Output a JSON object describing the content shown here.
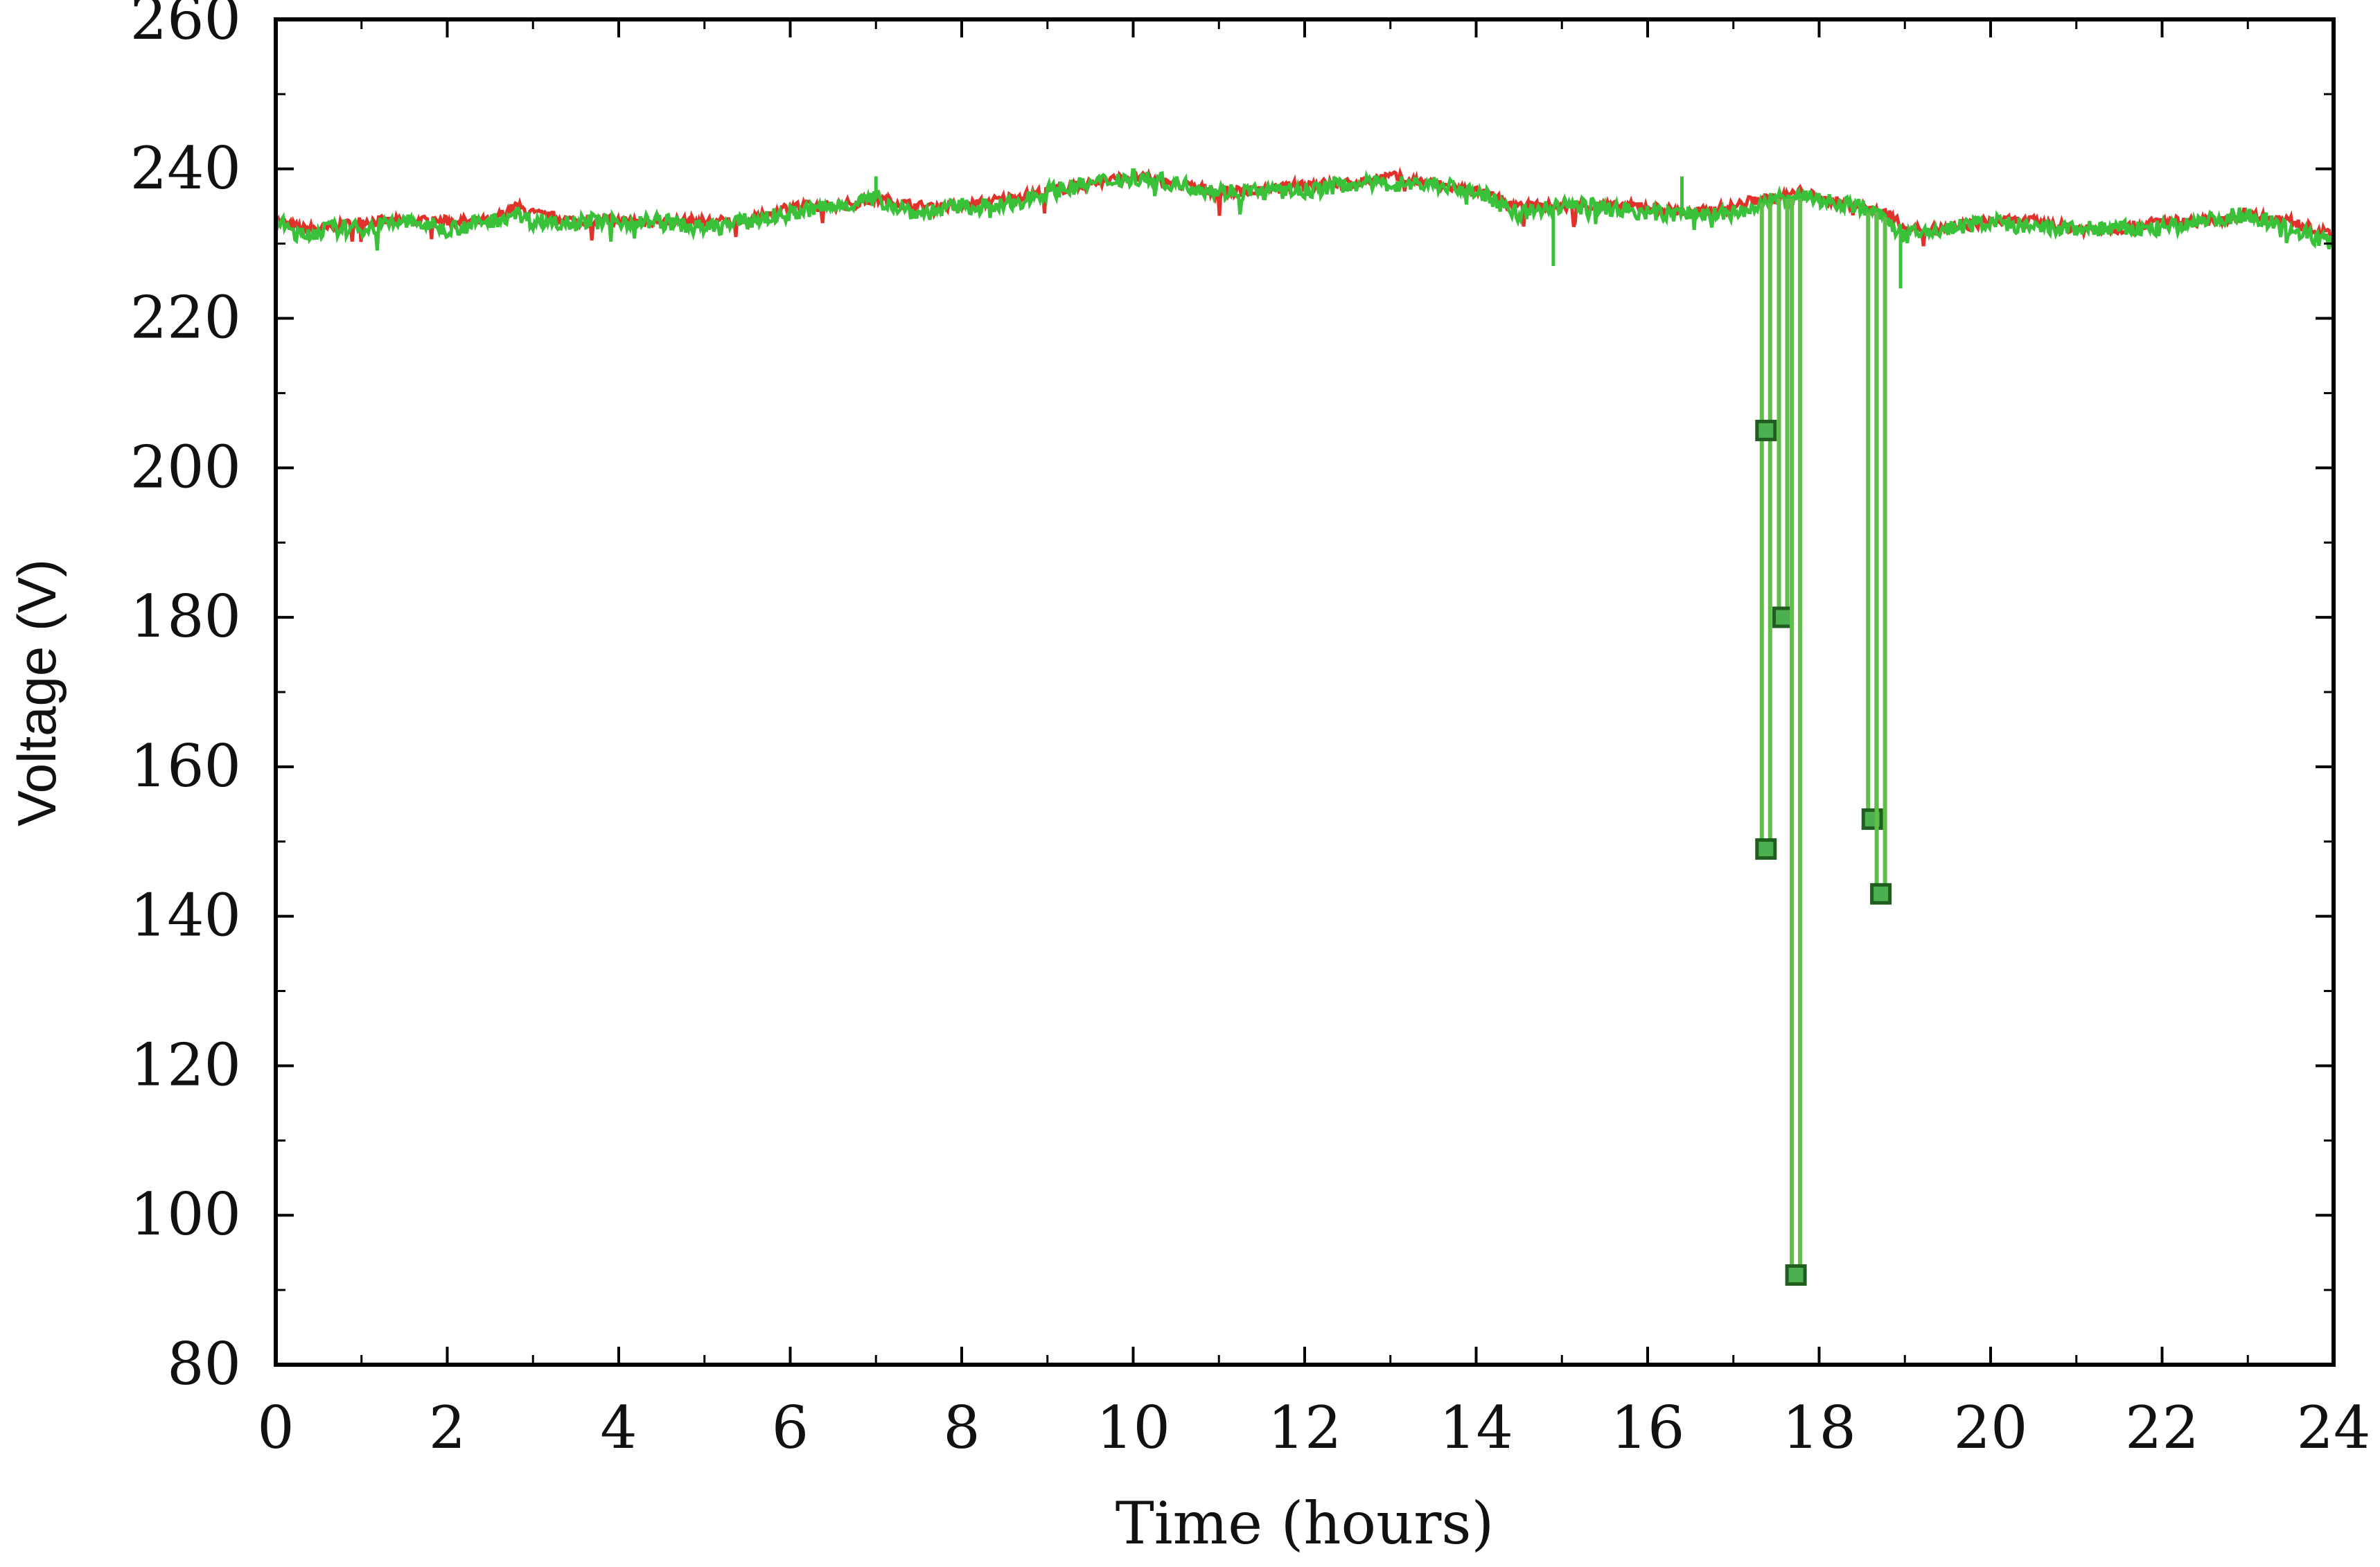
{
  "chart_data": {
    "type": "line",
    "title": "",
    "xlabel": "Time (hours)",
    "ylabel": "Voltage (V)",
    "xlim": [
      0,
      24
    ],
    "ylim": [
      80,
      260
    ],
    "xticks": [
      0,
      2,
      4,
      6,
      8,
      10,
      12,
      14,
      16,
      18,
      20,
      22,
      24
    ],
    "yticks": [
      80,
      100,
      120,
      140,
      160,
      180,
      200,
      220,
      240,
      260
    ],
    "grid": false,
    "legend": "none",
    "colors": {
      "red_series": "#e0312a",
      "green_series": "#39c239",
      "marker_fill": "#4caf50",
      "marker_edge": "#1f5e1f"
    },
    "series": [
      {
        "name": "",
        "color": "#e0312a",
        "x": [
          0,
          0.3,
          0.6,
          1,
          1.5,
          2,
          2.5,
          2.8,
          3,
          3.5,
          4,
          4.5,
          5,
          5.5,
          6,
          6.5,
          7,
          7.5,
          8,
          8.5,
          9,
          9.5,
          10,
          10.5,
          11,
          11.5,
          12,
          12.5,
          13,
          13.5,
          14,
          14.5,
          15,
          15.5,
          16,
          16.5,
          17,
          17.3,
          17.5,
          17.8,
          18,
          18.5,
          18.8,
          19,
          19.5,
          20,
          20.5,
          21,
          21.5,
          22,
          22.5,
          23,
          23.5,
          24
        ],
        "y": [
          233,
          232,
          232,
          233,
          233,
          233,
          233,
          235,
          234,
          233,
          233,
          233,
          233,
          233,
          235,
          235,
          236,
          235,
          235,
          236,
          237,
          238,
          239,
          238,
          237,
          237,
          238,
          238,
          239,
          238,
          237,
          235,
          235,
          235,
          235,
          234,
          235,
          236,
          236,
          237,
          236,
          235,
          234,
          232,
          232,
          233,
          233,
          232,
          232,
          233,
          233,
          234,
          233,
          231
        ]
      },
      {
        "name": "",
        "color": "#39c239",
        "x": [
          0,
          0.3,
          0.6,
          1,
          1.5,
          2,
          2.5,
          2.8,
          3,
          3.5,
          4,
          4.5,
          5,
          5.5,
          6,
          6.5,
          7,
          7.5,
          8,
          8.5,
          9,
          9.5,
          10,
          10.5,
          11,
          11.5,
          12,
          12.5,
          13,
          13.5,
          14,
          14.5,
          15,
          15.5,
          16,
          16.5,
          17,
          17.3,
          17.5,
          17.8,
          18,
          18.5,
          18.8,
          19,
          19.5,
          20,
          20.5,
          21,
          21.5,
          22,
          22.5,
          23,
          23.5,
          24
        ],
        "y": [
          233,
          231,
          232,
          232,
          233,
          232,
          233,
          234,
          233,
          233,
          233,
          233,
          232,
          233,
          234,
          235,
          236,
          234,
          235,
          235,
          237,
          238,
          239,
          238,
          237,
          237,
          237,
          238,
          238,
          238,
          237,
          234,
          235,
          235,
          234,
          234,
          234,
          235,
          236,
          236,
          236,
          235,
          233,
          231,
          232,
          233,
          232,
          232,
          232,
          232,
          233,
          234,
          232,
          230
        ]
      }
    ],
    "dips": [
      {
        "x": 17.38,
        "lows": [
          205,
          149
        ]
      },
      {
        "x": 17.58,
        "lows": [
          180
        ]
      },
      {
        "x": 17.73,
        "lows": [
          92
        ]
      },
      {
        "x": 18.62,
        "lows": [
          153
        ]
      },
      {
        "x": 18.72,
        "lows": [
          143
        ]
      }
    ],
    "spikes": [
      {
        "x": 14.9,
        "y": 227
      },
      {
        "x": 16.4,
        "y": 239
      },
      {
        "x": 18.95,
        "y": 224
      },
      {
        "x": 7.0,
        "y": 239
      }
    ]
  }
}
